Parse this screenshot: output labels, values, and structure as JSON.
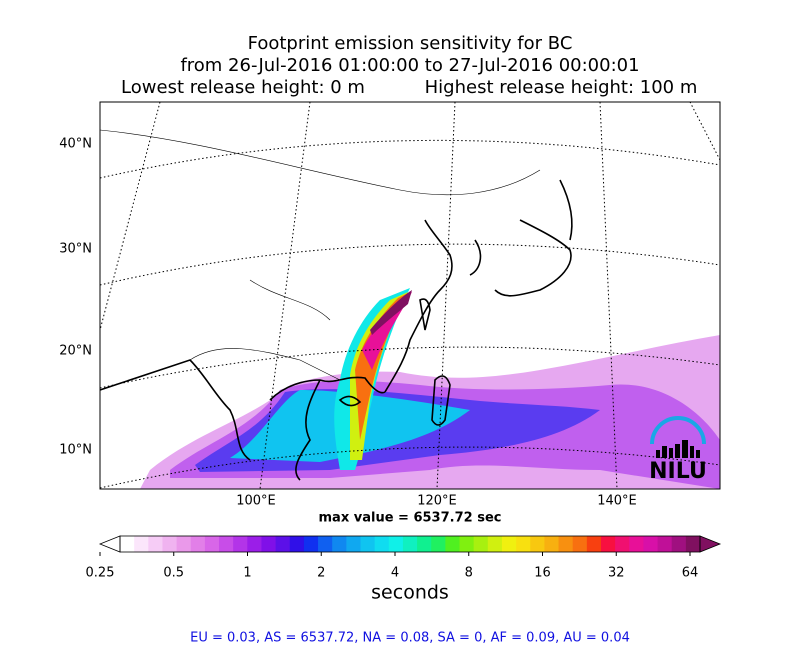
{
  "title": {
    "line1": "Footprint emission sensitivity for BC",
    "line2": "from 26-Jul-2016 01:00:00 to 27-Jul-2016 00:00:01",
    "line3a": "Lowest release height: 0 m",
    "line3b": "Highest release height: 100 m"
  },
  "map": {
    "lat_labels": [
      "40°N",
      "30°N",
      "20°N",
      "10°N"
    ],
    "lon_labels": [
      "100°E",
      "120°E",
      "140°E"
    ],
    "max_value": "max value = 6537.72 sec",
    "logo": "NILU"
  },
  "colorbar": {
    "ticks": [
      0.25,
      0.5,
      1,
      2,
      4,
      8,
      16,
      32,
      64
    ],
    "label": "seconds",
    "colors": [
      "#ffffff",
      "#fbe6fb",
      "#f6ccf6",
      "#f0b3f0",
      "#ea99ea",
      "#e27fe8",
      "#d866e8",
      "#c84de8",
      "#b334e8",
      "#9b1ee8",
      "#8010e8",
      "#5c10e8",
      "#3010e8",
      "#1030f0",
      "#1060f0",
      "#1088f0",
      "#10a8f0",
      "#10c4f0",
      "#10dcf0",
      "#10f0e8",
      "#10f0c0",
      "#10f090",
      "#20f060",
      "#50f020",
      "#80f010",
      "#a8f010",
      "#d0f010",
      "#f0f010",
      "#f8e010",
      "#f8c810",
      "#f8b010",
      "#f89010",
      "#f87010",
      "#f84010",
      "#f81040",
      "#f01070",
      "#e81098",
      "#d810a8",
      "#c01098",
      "#a01080",
      "#801060"
    ]
  },
  "footer": "EU = 0.03,  AS = 6537.72,  NA = 0.08,  SA = 0,  AF = 0.09,  AU = 0.04"
}
